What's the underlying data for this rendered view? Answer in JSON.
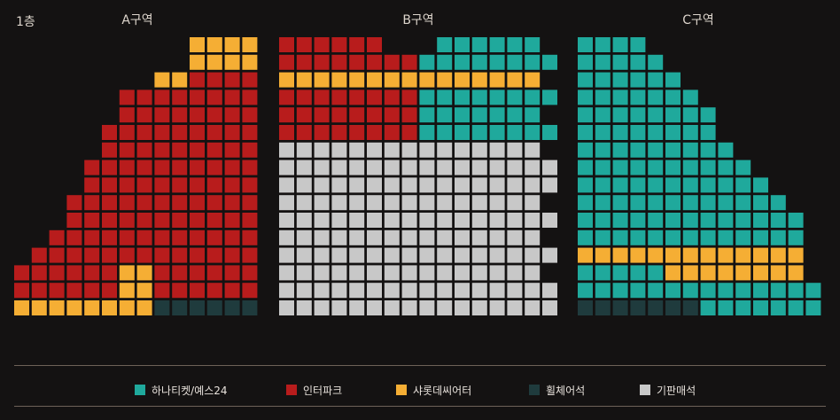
{
  "floor": "1층",
  "zones": [
    "A구역",
    "B구역",
    "C구역"
  ],
  "colors": {
    "teal": "#1fa99c",
    "red": "#b81c1c",
    "orange": "#f5ae34",
    "dark": "#1f3b3d",
    "gray": "#c8c8c8",
    "background": "#141212"
  },
  "legend": [
    {
      "label": "하나티켓/예스24",
      "color": "#1fa99c"
    },
    {
      "label": "인터파크",
      "color": "#b81c1c"
    },
    {
      "label": "샤롯데씨어터",
      "color": "#f5ae34"
    },
    {
      "label": "휠체어석",
      "color": "#1f3b3d"
    },
    {
      "label": "기판매석",
      "color": "#c8c8c8"
    }
  ]
}
